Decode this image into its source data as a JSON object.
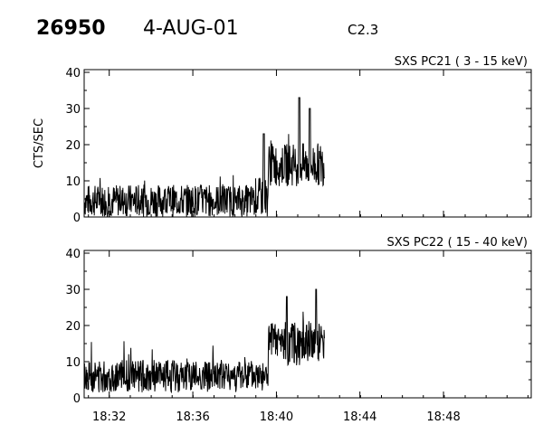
{
  "header": {
    "orbit": "26950",
    "date": "4-AUG-01",
    "goes_class": "C2.3"
  },
  "chart_data": [
    {
      "type": "line",
      "title": "SXS PC21  (  3 - 15 keV)",
      "ylabel": "CTS/SEC",
      "xlabel": "",
      "ylim": [
        0,
        40
      ],
      "yticks": [
        "0",
        "10",
        "20",
        "30",
        "40"
      ],
      "xticks": [],
      "grid": false,
      "time_axis": {
        "start": "18:30.8",
        "end": "18:52.2",
        "data_start": "18:30.8",
        "data_end": "18:42.3"
      },
      "series": [
        {
          "segments": [
            {
              "t0": 18.5133,
              "t1": 18.65,
              "mean": 4.5,
              "spread": 4.5
            },
            {
              "t0": 18.65,
              "t1": 18.66,
              "mean": 5.5,
              "spread": 5.5
            },
            {
              "t0": 18.66,
              "t1": 18.705,
              "mean": 14.5,
              "spread": 6.0
            },
            {
              "t0": 18.705,
              "t1": 18.705,
              "mean": 16.0,
              "spread": 7.5
            }
          ],
          "peaks": [
            {
              "t": 18.6567,
              "value": 23.0
            },
            {
              "t": 18.685,
              "value": 33.0
            },
            {
              "t": 18.6933,
              "value": 30.0
            }
          ]
        }
      ]
    },
    {
      "type": "line",
      "title": "SXS PC22  ( 15 - 40 keV)",
      "ylabel": "",
      "xlabel": "",
      "ylim": [
        0,
        40
      ],
      "yticks": [
        "0",
        "10",
        "20",
        "30",
        "40"
      ],
      "xticks": [
        "18:32",
        "18:36",
        "18:40",
        "18:44",
        "18:48"
      ],
      "grid": false,
      "time_axis": {
        "start": "18:30.8",
        "end": "18:52.2",
        "data_start": "18:30.8",
        "data_end": "18:42.3"
      },
      "series": [
        {
          "segments": [
            {
              "t0": 18.5133,
              "t1": 18.66,
              "mean": 6.0,
              "spread": 4.5
            },
            {
              "t0": 18.66,
              "t1": 18.705,
              "mean": 15.0,
              "spread": 6.0
            }
          ],
          "peaks": [
            {
              "t": 18.675,
              "value": 28.0
            },
            {
              "t": 18.6983,
              "value": 30.0
            }
          ]
        }
      ]
    }
  ]
}
